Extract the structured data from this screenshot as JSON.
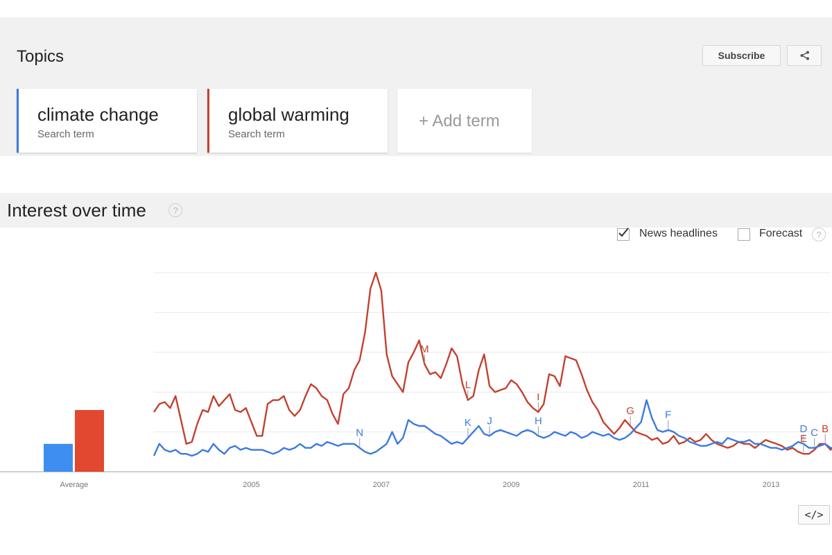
{
  "topics": {
    "title": "Topics",
    "subscribe_label": "Subscribe",
    "terms": [
      {
        "name": "climate change",
        "subtitle": "Search term",
        "color": "#3b7ae0"
      },
      {
        "name": "global warming",
        "subtitle": "Search term",
        "color": "#c2412f"
      }
    ],
    "add_term_label": "+ Add term"
  },
  "interest": {
    "title": "Interest over time",
    "help_glyph": "?",
    "options": [
      {
        "label": "News headlines",
        "checked": true
      },
      {
        "label": "Forecast",
        "checked": false
      }
    ],
    "embed_label": "</>"
  },
  "chart_data": {
    "type": "line",
    "x_start": "2004-01",
    "x_step": "month",
    "xlim": [
      "2004-01",
      "2014-06"
    ],
    "x_tick_labels": [
      "2005",
      "2007",
      "2009",
      "2011",
      "2013"
    ],
    "ylim": [
      0,
      100
    ],
    "grid": true,
    "series": [
      {
        "name": "climate change",
        "color": "#3b7ae0",
        "values": [
          8,
          14,
          11,
          10,
          11,
          9,
          9,
          8,
          9,
          11,
          10,
          14,
          11,
          9,
          12,
          13,
          11,
          12,
          11,
          11,
          11,
          10,
          9,
          10,
          12,
          11,
          12,
          14,
          12,
          12,
          14,
          13,
          15,
          14,
          13,
          14,
          14,
          14,
          12,
          10,
          9,
          10,
          12,
          14,
          20,
          14,
          17,
          26,
          24,
          23,
          23,
          21,
          19,
          18,
          16,
          14,
          15,
          14,
          17,
          20,
          23,
          19,
          18,
          20,
          21,
          20,
          19,
          18,
          20,
          21,
          20,
          18,
          17,
          18,
          20,
          19,
          18,
          20,
          19,
          17,
          18,
          20,
          19,
          18,
          19,
          17,
          16,
          17,
          19,
          22,
          25,
          36,
          27,
          21,
          20,
          21,
          20,
          18,
          17,
          15,
          14,
          13,
          13,
          14,
          15,
          14,
          17,
          16,
          15,
          15,
          16,
          14,
          14,
          13,
          12,
          12,
          11,
          12,
          13,
          15,
          14,
          12,
          12,
          13,
          14,
          12,
          12,
          12,
          11,
          11,
          10,
          11,
          11,
          11,
          12,
          10,
          9,
          9,
          10,
          12,
          9,
          8,
          13,
          16,
          14,
          12,
          13,
          15,
          17
        ]
      },
      {
        "name": "global warming",
        "color": "#c2412f",
        "values": [
          30,
          34,
          35,
          32,
          38,
          26,
          14,
          15,
          24,
          31,
          30,
          38,
          33,
          36,
          39,
          31,
          30,
          32,
          25,
          18,
          18,
          34,
          36,
          36,
          38,
          31,
          28,
          31,
          38,
          44,
          42,
          38,
          36,
          29,
          24,
          39,
          42,
          51,
          56,
          70,
          92,
          100,
          91,
          59,
          48,
          44,
          40,
          55,
          60,
          66,
          54,
          49,
          50,
          47,
          54,
          62,
          58,
          44,
          36,
          38,
          51,
          59,
          43,
          40,
          41,
          42,
          46,
          44,
          40,
          35,
          32,
          30,
          34,
          49,
          48,
          43,
          58,
          57,
          56,
          49,
          41,
          35,
          31,
          25,
          22,
          19,
          22,
          26,
          23,
          20,
          19,
          18,
          16,
          17,
          14,
          15,
          18,
          14,
          15,
          17,
          15,
          16,
          19,
          16,
          14,
          13,
          12,
          13,
          15,
          14,
          14,
          12,
          14,
          16,
          15,
          14,
          13,
          11,
          12,
          10,
          9,
          9,
          11,
          14,
          14,
          11,
          14,
          14,
          12,
          13,
          12,
          11,
          10,
          9,
          8,
          8,
          9,
          9,
          10,
          12,
          11,
          10,
          10,
          12,
          14,
          11,
          12,
          14,
          17
        ]
      }
    ],
    "average": {
      "label": "Average",
      "values": [
        14,
        31
      ]
    },
    "annotations": [
      {
        "letter": "M",
        "series": "global warming",
        "date": "2008-03"
      },
      {
        "letter": "L",
        "series": "global warming",
        "date": "2008-11"
      },
      {
        "letter": "I",
        "series": "global warming",
        "date": "2009-12"
      },
      {
        "letter": "H",
        "series": "climate change",
        "date": "2009-12"
      },
      {
        "letter": "N",
        "series": "climate change",
        "date": "2007-03"
      },
      {
        "letter": "K",
        "series": "climate change",
        "date": "2008-11"
      },
      {
        "letter": "J",
        "series": "climate change",
        "date": "2009-03"
      },
      {
        "letter": "G",
        "series": "global warming",
        "date": "2011-05"
      },
      {
        "letter": "F",
        "series": "climate change",
        "date": "2011-12"
      },
      {
        "letter": "E",
        "series": "global warming",
        "date": "2014-01"
      },
      {
        "letter": "D",
        "series": "climate change",
        "date": "2014-01"
      },
      {
        "letter": "C",
        "series": "climate change",
        "date": "2014-03"
      },
      {
        "letter": "B",
        "series": "global warming",
        "date": "2014-05"
      }
    ]
  }
}
